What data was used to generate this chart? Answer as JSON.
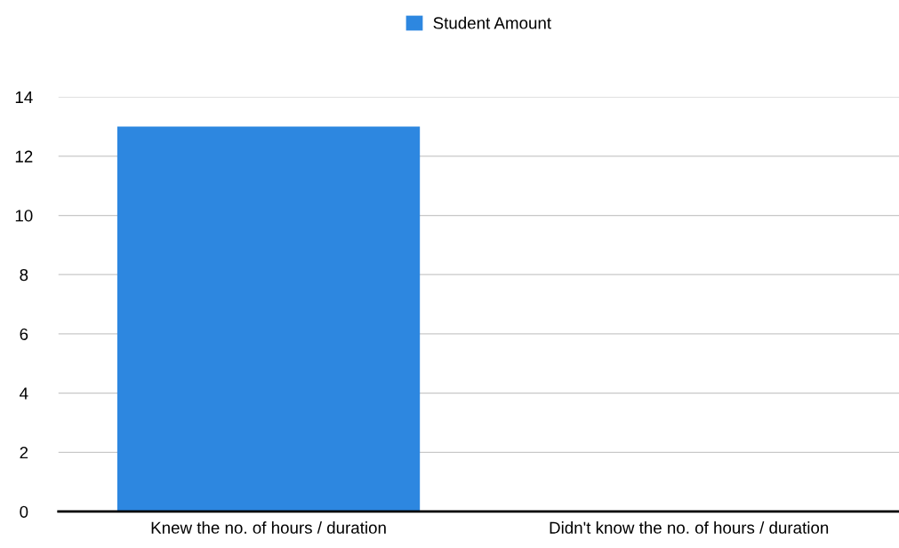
{
  "chart_data": {
    "type": "bar",
    "categories": [
      "Knew the no. of hours / duration",
      "Didn't know the no. of hours / duration"
    ],
    "series": [
      {
        "name": "Student Amount",
        "color": "#2d87e0",
        "values": [
          13,
          0
        ]
      }
    ],
    "ylim": [
      0,
      14
    ],
    "yticks": [
      0,
      2,
      4,
      6,
      8,
      10,
      12,
      14
    ],
    "grid": "y",
    "legend": "top"
  }
}
